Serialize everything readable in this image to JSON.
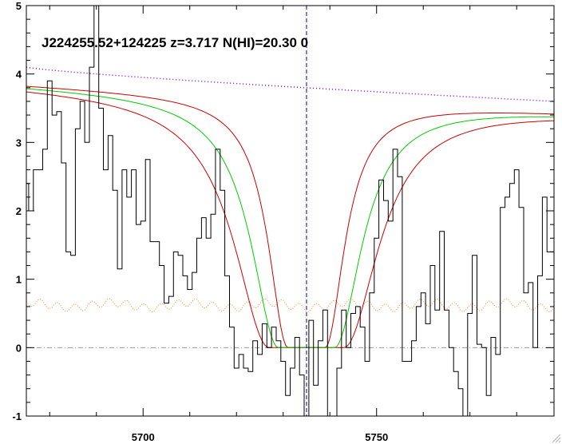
{
  "chart_data": {
    "type": "line",
    "title": "J224255.52+124225 z=3.717 N(HI)=20.30 0",
    "xlabel": "",
    "ylabel": "",
    "xlim": [
      5675,
      5788
    ],
    "ylim": [
      -1,
      5
    ],
    "x_ticks": [
      5700,
      5750
    ],
    "y_ticks": [
      -1,
      0,
      1,
      2,
      3,
      4,
      5
    ],
    "grid": false,
    "marker_x": 5735,
    "colors": {
      "flux": "#000000",
      "model": "#00cc00",
      "model_bounds": "#cc0000",
      "continuum": "#8800ff",
      "error": "#ff8822",
      "zero_line": "#999999",
      "marker": "#0000cc"
    },
    "model": {
      "center": 5735,
      "continuum_start": 3.85,
      "continuum_end": 3.45,
      "half_width_bottom": 6,
      "half_width_50": 13,
      "bound_shift": 4
    },
    "continuum": {
      "start": 4.1,
      "end": 3.6
    },
    "error": {
      "level": 0.62,
      "amplitude": 0.06
    },
    "series": [
      {
        "values": [
          [
            5675,
            2.4
          ],
          [
            5676,
            2.0
          ],
          [
            5677,
            2.6
          ],
          [
            5678,
            2.6
          ],
          [
            5679,
            2.9
          ],
          [
            5680,
            3.9
          ],
          [
            5681,
            3.4
          ],
          [
            5682,
            3.45
          ],
          [
            5683,
            2.7
          ],
          [
            5684,
            1.4
          ],
          [
            5685,
            1.35
          ],
          [
            5686,
            3.2
          ],
          [
            5687,
            3.6
          ],
          [
            5688,
            3.0
          ],
          [
            5689,
            4.1
          ],
          [
            5690,
            5.0
          ],
          [
            5691,
            3.5
          ],
          [
            5692,
            2.6
          ],
          [
            5693,
            3.1
          ],
          [
            5694,
            2.3
          ],
          [
            5695,
            1.15
          ],
          [
            5696,
            2.6
          ],
          [
            5697,
            2.2
          ],
          [
            5698,
            2.6
          ],
          [
            5699,
            1.8
          ],
          [
            5700,
            1.85
          ],
          [
            5701,
            2.75
          ],
          [
            5702,
            1.55
          ],
          [
            5703,
            1.55
          ],
          [
            5704,
            1.2
          ],
          [
            5705,
            0.65
          ],
          [
            5706,
            0.75
          ],
          [
            5707,
            1.4
          ],
          [
            5708,
            1.35
          ],
          [
            5709,
            1.05
          ],
          [
            5710,
            0.85
          ],
          [
            5711,
            1.1
          ],
          [
            5712,
            1.6
          ],
          [
            5713,
            1.9
          ],
          [
            5714,
            1.6
          ],
          [
            5715,
            1.95
          ],
          [
            5716,
            2.9
          ],
          [
            5717,
            2.3
          ],
          [
            5718,
            1.05
          ],
          [
            5719,
            0.3
          ],
          [
            5720,
            -0.3
          ],
          [
            5721,
            -0.1
          ],
          [
            5722,
            -0.3
          ],
          [
            5723,
            -0.35
          ],
          [
            5724,
            0.1
          ],
          [
            5725,
            -0.1
          ],
          [
            5726,
            0.35
          ],
          [
            5727,
            0.0
          ],
          [
            5728,
            0.3
          ],
          [
            5729,
            0.1
          ],
          [
            5730,
            -0.2
          ],
          [
            5731,
            -0.7
          ],
          [
            5732,
            -0.3
          ],
          [
            5733,
            0.15
          ],
          [
            5734,
            -0.4
          ],
          [
            5735,
            -1.0
          ],
          [
            5736,
            0.4
          ],
          [
            5737,
            -0.55
          ],
          [
            5738,
            0.1
          ],
          [
            5739,
            0.55
          ],
          [
            5740,
            -1.0
          ],
          [
            5741,
            -1.0
          ],
          [
            5742,
            -0.3
          ],
          [
            5743,
            0.55
          ],
          [
            5744,
            0.0
          ],
          [
            5745,
            0.5
          ],
          [
            5746,
            0.6
          ],
          [
            5747,
            0.3
          ],
          [
            5748,
            -0.2
          ],
          [
            5749,
            0.8
          ],
          [
            5750,
            1.6
          ],
          [
            5751,
            2.45
          ],
          [
            5752,
            2.15
          ],
          [
            5753,
            1.85
          ],
          [
            5754,
            2.9
          ],
          [
            5755,
            2.5
          ],
          [
            5756,
            -0.2
          ],
          [
            5757,
            -0.2
          ],
          [
            5758,
            0.1
          ],
          [
            5759,
            0.6
          ],
          [
            5760,
            0.8
          ],
          [
            5761,
            0.35
          ],
          [
            5762,
            1.2
          ],
          [
            5763,
            0.55
          ],
          [
            5764,
            1.7
          ],
          [
            5765,
            0.55
          ],
          [
            5766,
            0.0
          ],
          [
            5767,
            -0.35
          ],
          [
            5768,
            -0.6
          ],
          [
            5769,
            -1.0
          ],
          [
            5770,
            0.5
          ],
          [
            5771,
            1.35
          ],
          [
            5772,
            0.05
          ],
          [
            5773,
            0.0
          ],
          [
            5774,
            -0.7
          ],
          [
            5775,
            0.15
          ],
          [
            5776,
            -0.1
          ],
          [
            5777,
            2.05
          ],
          [
            5778,
            2.2
          ],
          [
            5779,
            2.4
          ],
          [
            5780,
            2.6
          ],
          [
            5781,
            2.05
          ],
          [
            5782,
            0.8
          ],
          [
            5783,
            0.95
          ],
          [
            5784,
            0.0
          ],
          [
            5785,
            1.05
          ],
          [
            5786,
            2.2
          ],
          [
            5787,
            1.4
          ],
          [
            5788,
            1.4
          ]
        ]
      }
    ]
  }
}
